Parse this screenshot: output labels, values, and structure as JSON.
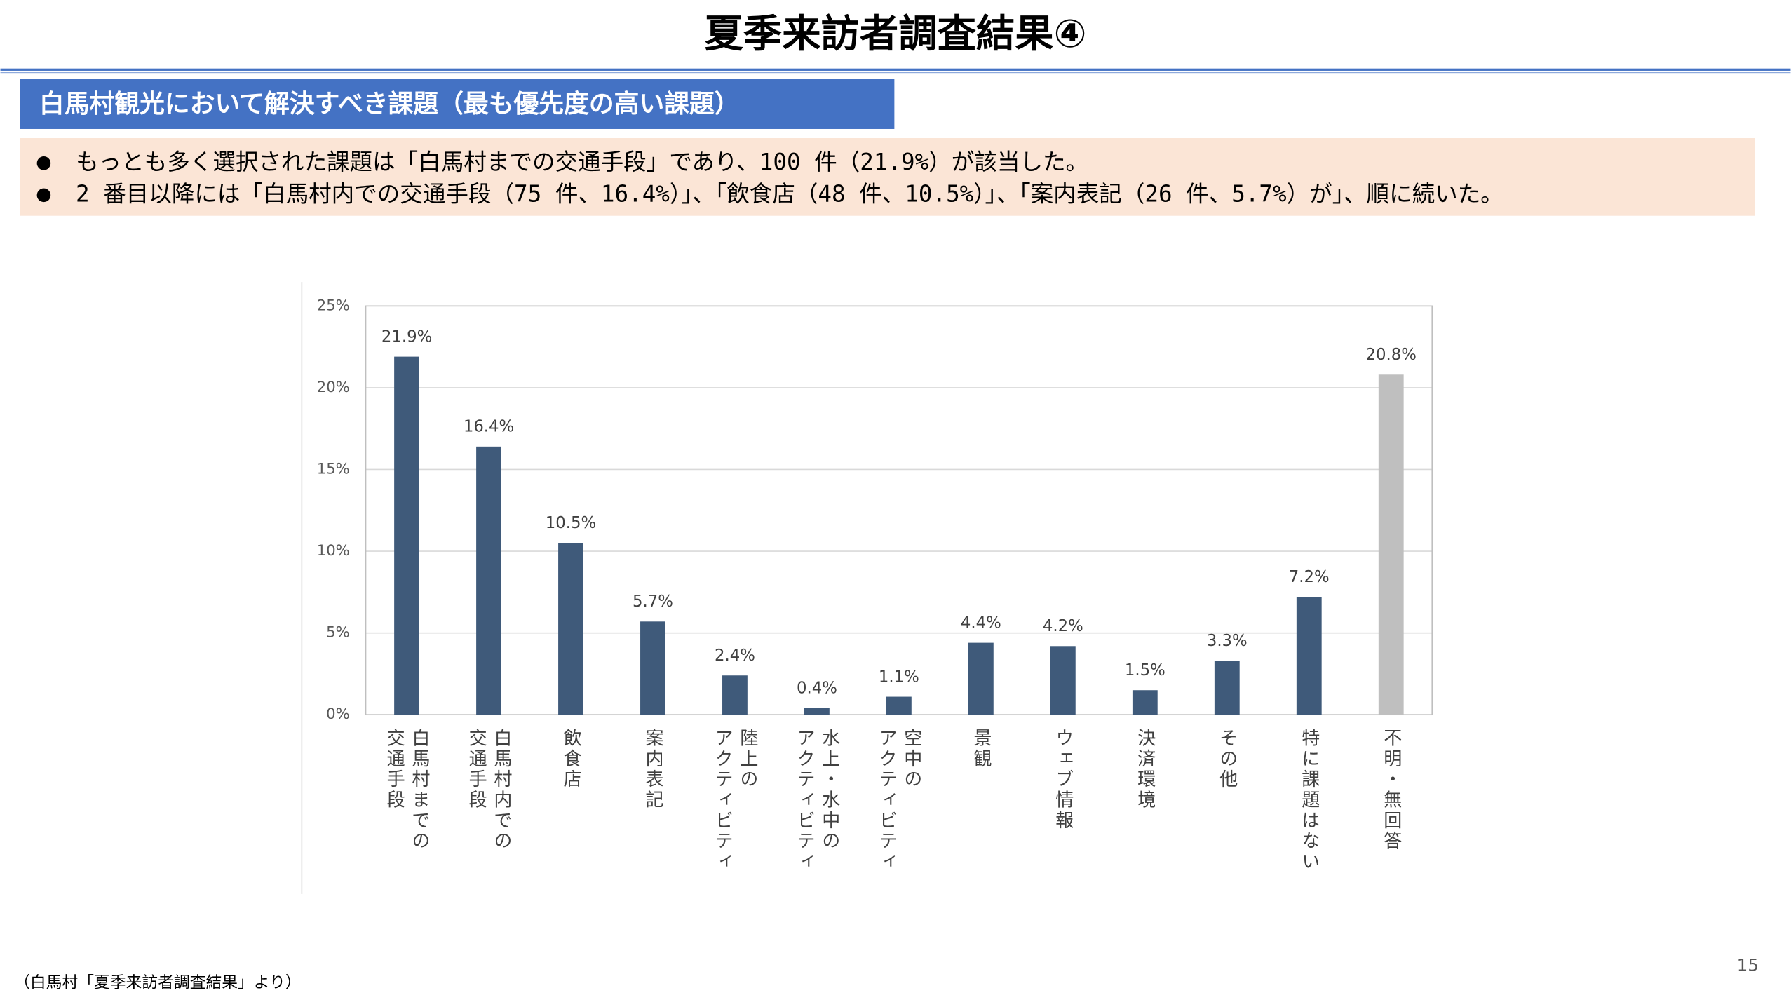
{
  "header": {
    "title": "夏季来訪者調査結果④",
    "section": "白馬村観光において解決すべき課題（最も優先度の高い課題）"
  },
  "bullets": [
    "もっとも多く選択された課題は「白馬村までの交通手段」であり、100 件（21.9%）が該当した。",
    "2 番目以降には「白馬村内での交通手段（75 件、16.4%）」、「飲食店（48 件、10.5%）」、「案内表記（26 件、5.7%）が」、順に続いた。"
  ],
  "chart_data": {
    "type": "bar",
    "categories": [
      [
        "白馬村までの",
        "交通手段"
      ],
      [
        "白馬村内での",
        "交通手段"
      ],
      [
        "飲食店"
      ],
      [
        "案内表記"
      ],
      [
        "陸上の",
        "アクティビティ"
      ],
      [
        "水上・水中の",
        "アクティビティ"
      ],
      [
        "空中の",
        "アクティビティ"
      ],
      [
        "景観"
      ],
      [
        "ウェブ情報"
      ],
      [
        "決済環境"
      ],
      [
        "その他"
      ],
      [
        "特に課題はない"
      ],
      [
        "不明・無回答"
      ]
    ],
    "values": [
      21.9,
      16.4,
      10.5,
      5.7,
      2.4,
      0.4,
      1.1,
      4.4,
      4.2,
      1.5,
      3.3,
      7.2,
      20.8
    ],
    "value_labels": [
      "21.9%",
      "16.4%",
      "10.5%",
      "5.7%",
      "2.4%",
      "0.4%",
      "1.1%",
      "4.4%",
      "4.2%",
      "1.5%",
      "3.3%",
      "7.2%",
      "20.8%"
    ],
    "colors": [
      "#3f5a7a",
      "#3f5a7a",
      "#3f5a7a",
      "#3f5a7a",
      "#3f5a7a",
      "#3f5a7a",
      "#3f5a7a",
      "#3f5a7a",
      "#3f5a7a",
      "#3f5a7a",
      "#3f5a7a",
      "#3f5a7a",
      "#bfbfbf"
    ],
    "ylim": [
      0,
      25
    ],
    "yticks": [
      {
        "value": 0,
        "label": "0%"
      },
      {
        "value": 5,
        "label": "5%"
      },
      {
        "value": 10,
        "label": "10%"
      },
      {
        "value": 15,
        "label": "15%"
      },
      {
        "value": 20,
        "label": "20%"
      },
      {
        "value": 25,
        "label": "25%"
      }
    ],
    "grid": true
  },
  "footer": {
    "source": "（白馬村「夏季来訪者調査結果」より）",
    "page": "15"
  }
}
